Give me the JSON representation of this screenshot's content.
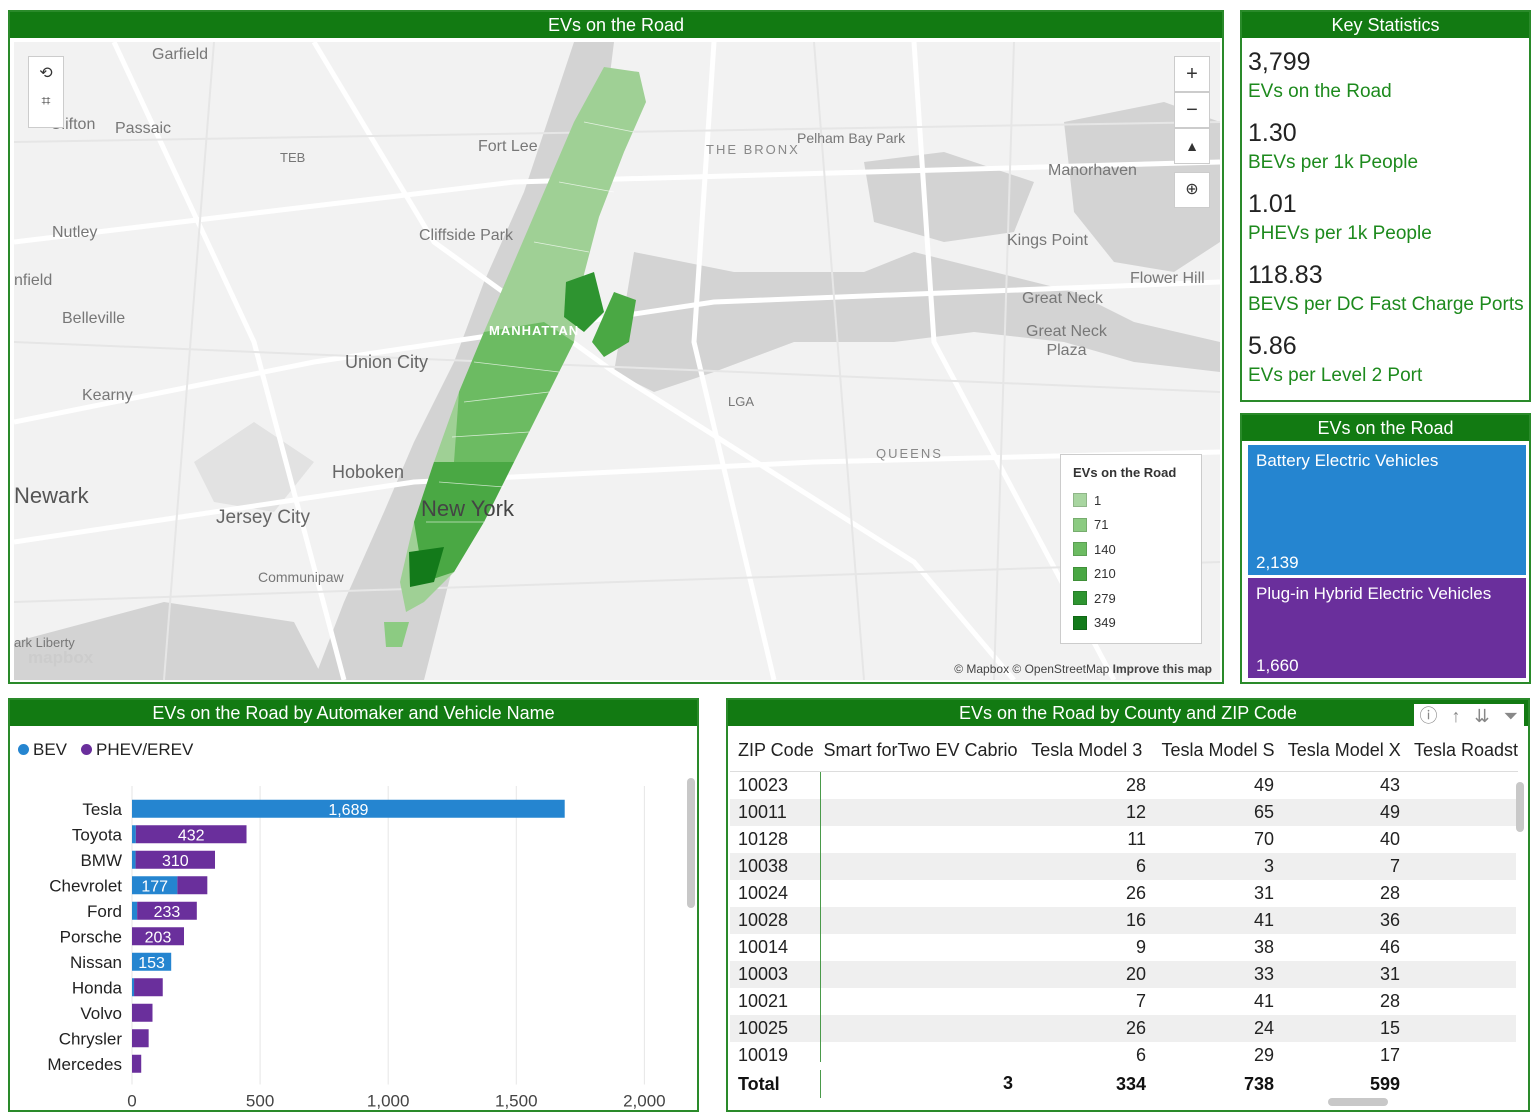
{
  "map": {
    "title": "EVs on the Road",
    "labels": {
      "garfield": "Garfield",
      "passaic": "Passaic",
      "clifton": "Clifton",
      "teb": "TEB",
      "fort_lee": "Fort Lee",
      "the_bronx": "THE BRONX",
      "pelham_bay_park": "Pelham Bay Park",
      "manorhaven": "Manorhaven",
      "nutley": "Nutley",
      "cliffside_park": "Cliffside Park",
      "kings_point": "Kings Point",
      "flower_hill": "Flower Hill",
      "fairfield": "nfield",
      "great_neck": "Great Neck",
      "great_neck_plaza": "Great Neck\nPlaza",
      "belleville": "Belleville",
      "manhattan": "MANHATTAN",
      "union_city": "Union City",
      "lga": "LGA",
      "kearny": "Kearny",
      "queens": "QUEENS",
      "hoboken": "Hoboken",
      "newark": "Newark",
      "new_york": "New York",
      "jersey_city": "Jersey City",
      "communipaw": "Communipaw",
      "liberty": "ark Liberty"
    },
    "legend": {
      "title": "EVs on the Road",
      "items": [
        {
          "label": "1",
          "color": "#a8d5a0"
        },
        {
          "label": "71",
          "color": "#8ccb82"
        },
        {
          "label": "140",
          "color": "#6cbb62"
        },
        {
          "label": "210",
          "color": "#4aa844"
        },
        {
          "label": "279",
          "color": "#2e9430"
        },
        {
          "label": "349",
          "color": "#137a1a"
        }
      ]
    },
    "attribution": "© Mapbox © OpenStreetMap",
    "improve_link": "Improve this map",
    "logo": "mapbox"
  },
  "stats": {
    "title": "Key Statistics",
    "items": [
      {
        "value": "3,799",
        "label": "EVs on the Road"
      },
      {
        "value": "1.30",
        "label": "BEVs per 1k People"
      },
      {
        "value": "1.01",
        "label": "PHEVs per 1k People"
      },
      {
        "value": "118.83",
        "label": "BEVS per DC Fast Charge Ports"
      },
      {
        "value": "5.86",
        "label": "EVs per Level 2 Port"
      }
    ]
  },
  "treemap": {
    "title": "EVs on the Road",
    "bev_label": "Battery Electric Vehicles",
    "bev_value": "2,139",
    "bev_color": "#2585d0",
    "phev_label": "Plug-in Hybrid Electric Vehicles",
    "phev_value": "1,660",
    "phev_color": "#6a2f9c"
  },
  "bar_chart": {
    "title": "EVs on the Road by Automaker and Vehicle Name",
    "legend_bev": "BEV",
    "legend_phev": "PHEV/EREV"
  },
  "chart_data": {
    "type": "bar",
    "orientation": "horizontal",
    "stacked": true,
    "categories": [
      "Tesla",
      "Toyota",
      "BMW",
      "Chevrolet",
      "Ford",
      "Porsche",
      "Nissan",
      "Honda",
      "Volvo",
      "Chrysler",
      "Mercedes"
    ],
    "series": [
      {
        "name": "BEV",
        "color": "#2585d0",
        "values": [
          1689,
          15,
          14,
          177,
          20,
          0,
          153,
          8,
          0,
          0,
          0
        ],
        "labels": [
          "1,689",
          "",
          "",
          "177",
          "",
          "",
          "153",
          "",
          "",
          "",
          ""
        ]
      },
      {
        "name": "PHEV/EREV",
        "color": "#6a2f9c",
        "values": [
          0,
          432,
          310,
          117,
          233,
          203,
          0,
          112,
          80,
          65,
          36
        ],
        "labels": [
          "",
          "432",
          "310",
          "",
          "233",
          "203",
          "",
          "",
          "",
          "",
          ""
        ]
      }
    ],
    "xlim": [
      0,
      2100
    ],
    "xticks": [
      "0",
      "500",
      "1,000",
      "1,500",
      "2,000"
    ],
    "grid": true
  },
  "table": {
    "title": "EVs on the Road by County and ZIP Code",
    "columns": [
      "ZIP Code",
      "Smart forTwo EV Cabrio",
      "Tesla Model 3",
      "Tesla Model S",
      "Tesla Model X",
      "Tesla Roadst"
    ],
    "rows": [
      [
        "10023",
        "",
        "28",
        "49",
        "43"
      ],
      [
        "10011",
        "",
        "12",
        "65",
        "49"
      ],
      [
        "10128",
        "",
        "11",
        "70",
        "40"
      ],
      [
        "10038",
        "",
        "6",
        "3",
        "7"
      ],
      [
        "10024",
        "",
        "26",
        "31",
        "28"
      ],
      [
        "10028",
        "",
        "16",
        "41",
        "36"
      ],
      [
        "10014",
        "",
        "9",
        "38",
        "46"
      ],
      [
        "10003",
        "",
        "20",
        "33",
        "31"
      ],
      [
        "10021",
        "",
        "7",
        "41",
        "28"
      ],
      [
        "10025",
        "",
        "26",
        "24",
        "15"
      ],
      [
        "10019",
        "",
        "6",
        "29",
        "17"
      ]
    ],
    "total": [
      "Total",
      "3",
      "334",
      "738",
      "599"
    ]
  }
}
